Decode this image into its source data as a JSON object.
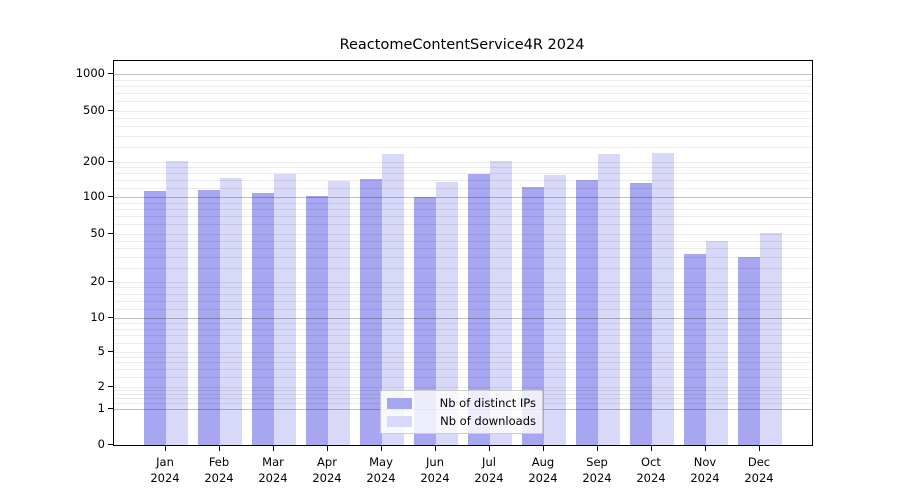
{
  "chart_data": {
    "type": "bar",
    "title": "ReactomeContentService4R 2024",
    "categories": [
      "Jan",
      "Feb",
      "Mar",
      "Apr",
      "May",
      "Jun",
      "Jul",
      "Aug",
      "Sep",
      "Oct",
      "Nov",
      "Dec"
    ],
    "year": "2024",
    "series": [
      {
        "name": "Nb of distinct IPs",
        "color": "#a7a7f1",
        "values": [
          112,
          116,
          108,
          102,
          143,
          100,
          159,
          121,
          140,
          133,
          34,
          32
        ]
      },
      {
        "name": "Nb of downloads",
        "color": "#d8d8f8",
        "values": [
          205,
          145,
          158,
          136,
          232,
          134,
          203,
          155,
          229,
          235,
          44,
          51
        ]
      }
    ],
    "yticks": [
      0,
      1,
      2,
      5,
      10,
      20,
      50,
      100,
      200,
      500,
      1000
    ],
    "ylim": [
      0,
      1000
    ],
    "scale": "symlog",
    "grid": true,
    "legend_position": "inside-bottom-center"
  },
  "colors": {
    "bar_ips": "#a7a7f1",
    "bar_downloads": "#d8d8f8",
    "grid_minor": "rgba(0,0,0,0.08)",
    "grid_major": "rgba(0,0,0,0.24)",
    "axis": "#000000",
    "text": "#000000",
    "legend_border": "#cccccc",
    "legend_background": "rgba(255,255,255,0.8)"
  }
}
